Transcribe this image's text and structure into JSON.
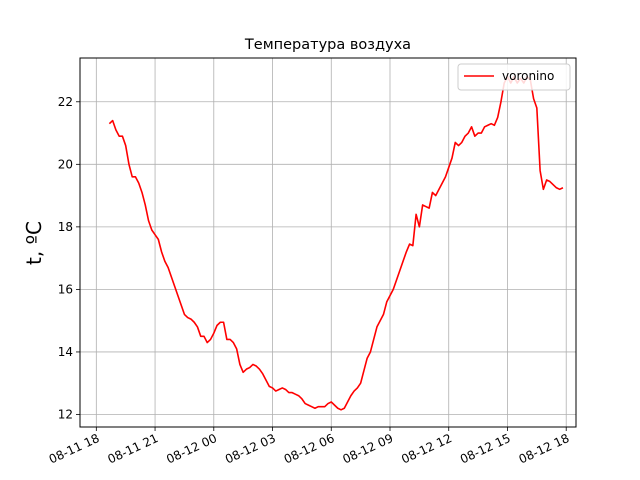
{
  "chart_data": {
    "type": "line",
    "title": "Температура воздуха",
    "ylabel": "t, ºC",
    "xlabel": "",
    "grid": true,
    "legend_position": "top-right",
    "xlim": [
      "08-11 17:10",
      "08-12 18:30"
    ],
    "ylim": [
      11.6,
      23.4
    ],
    "x_ticks": [
      "08-11 18",
      "08-11 21",
      "08-12 00",
      "08-12 03",
      "08-12 06",
      "08-12 09",
      "08-12 12",
      "08-12 15",
      "08-12 18"
    ],
    "y_ticks": [
      12,
      14,
      16,
      18,
      20,
      22
    ],
    "series": [
      {
        "name": "voronino",
        "color": "#ff0000",
        "x": [
          "08-11 18:40",
          "08-11 18:50",
          "08-11 19:00",
          "08-11 19:10",
          "08-11 19:20",
          "08-11 19:30",
          "08-11 19:40",
          "08-11 19:50",
          "08-11 20:00",
          "08-11 20:10",
          "08-11 20:20",
          "08-11 20:30",
          "08-11 20:40",
          "08-11 20:50",
          "08-11 21:00",
          "08-11 21:10",
          "08-11 21:20",
          "08-11 21:30",
          "08-11 21:40",
          "08-11 21:50",
          "08-11 22:00",
          "08-11 22:10",
          "08-11 22:20",
          "08-11 22:30",
          "08-11 22:40",
          "08-11 22:50",
          "08-11 23:00",
          "08-11 23:10",
          "08-11 23:20",
          "08-11 23:30",
          "08-11 23:40",
          "08-11 23:50",
          "08-12 00:00",
          "08-12 00:10",
          "08-12 00:20",
          "08-12 00:30",
          "08-12 00:40",
          "08-12 00:50",
          "08-12 01:00",
          "08-12 01:10",
          "08-12 01:20",
          "08-12 01:30",
          "08-12 01:40",
          "08-12 01:50",
          "08-12 02:00",
          "08-12 02:10",
          "08-12 02:20",
          "08-12 02:30",
          "08-12 02:40",
          "08-12 02:50",
          "08-12 03:00",
          "08-12 03:10",
          "08-12 03:20",
          "08-12 03:30",
          "08-12 03:40",
          "08-12 03:50",
          "08-12 04:00",
          "08-12 04:10",
          "08-12 04:20",
          "08-12 04:30",
          "08-12 04:40",
          "08-12 04:50",
          "08-12 05:00",
          "08-12 05:10",
          "08-12 05:20",
          "08-12 05:30",
          "08-12 05:40",
          "08-12 05:50",
          "08-12 06:00",
          "08-12 06:10",
          "08-12 06:20",
          "08-12 06:30",
          "08-12 06:40",
          "08-12 06:50",
          "08-12 07:00",
          "08-12 07:10",
          "08-12 07:20",
          "08-12 07:30",
          "08-12 07:40",
          "08-12 07:50",
          "08-12 08:00",
          "08-12 08:10",
          "08-12 08:20",
          "08-12 08:30",
          "08-12 08:40",
          "08-12 08:50",
          "08-12 09:00",
          "08-12 09:10",
          "08-12 09:20",
          "08-12 09:30",
          "08-12 09:40",
          "08-12 09:50",
          "08-12 10:00",
          "08-12 10:10",
          "08-12 10:20",
          "08-12 10:30",
          "08-12 10:40",
          "08-12 10:50",
          "08-12 11:00",
          "08-12 11:10",
          "08-12 11:20",
          "08-12 11:30",
          "08-12 11:40",
          "08-12 11:50",
          "08-12 12:00",
          "08-12 12:10",
          "08-12 12:20",
          "08-12 12:30",
          "08-12 12:40",
          "08-12 12:50",
          "08-12 13:00",
          "08-12 13:10",
          "08-12 13:20",
          "08-12 13:30",
          "08-12 13:40",
          "08-12 13:50",
          "08-12 14:00",
          "08-12 14:10",
          "08-12 14:20",
          "08-12 14:30",
          "08-12 14:40",
          "08-12 14:50",
          "08-12 15:00",
          "08-12 15:10",
          "08-12 15:20",
          "08-12 15:30",
          "08-12 15:40",
          "08-12 15:50",
          "08-12 16:00",
          "08-12 16:10",
          "08-12 16:20",
          "08-12 16:30",
          "08-12 16:40",
          "08-12 16:50",
          "08-12 17:00",
          "08-12 17:10",
          "08-12 17:20",
          "08-12 17:30",
          "08-12 17:40",
          "08-12 17:50"
        ],
        "values": [
          21.3,
          21.4,
          21.1,
          20.9,
          20.9,
          20.6,
          20.0,
          19.6,
          19.6,
          19.4,
          19.1,
          18.7,
          18.2,
          17.9,
          17.75,
          17.6,
          17.2,
          16.9,
          16.7,
          16.4,
          16.1,
          15.8,
          15.5,
          15.2,
          15.1,
          15.05,
          14.95,
          14.8,
          14.5,
          14.5,
          14.3,
          14.4,
          14.6,
          14.85,
          14.95,
          14.95,
          14.4,
          14.4,
          14.3,
          14.1,
          13.6,
          13.35,
          13.45,
          13.5,
          13.6,
          13.55,
          13.45,
          13.3,
          13.1,
          12.9,
          12.85,
          12.75,
          12.8,
          12.85,
          12.8,
          12.7,
          12.7,
          12.65,
          12.6,
          12.5,
          12.35,
          12.3,
          12.25,
          12.2,
          12.25,
          12.25,
          12.25,
          12.35,
          12.4,
          12.3,
          12.2,
          12.15,
          12.2,
          12.4,
          12.6,
          12.75,
          12.85,
          13.0,
          13.4,
          13.8,
          14.0,
          14.4,
          14.8,
          15.0,
          15.2,
          15.6,
          15.8,
          16.0,
          16.3,
          16.6,
          16.9,
          17.2,
          17.45,
          17.4,
          18.4,
          18.0,
          18.7,
          18.65,
          18.6,
          19.1,
          19.0,
          19.2,
          19.4,
          19.6,
          19.9,
          20.2,
          20.7,
          20.6,
          20.7,
          20.9,
          21.0,
          21.2,
          20.9,
          21.0,
          21.0,
          21.2,
          21.25,
          21.3,
          21.25,
          21.5,
          22.0,
          22.6,
          22.8,
          22.6,
          22.8,
          22.6,
          22.75,
          22.6,
          22.8,
          22.7,
          22.1,
          21.8,
          19.8,
          19.2,
          19.5,
          19.45,
          19.35,
          19.25,
          19.2,
          19.25
        ]
      }
    ]
  }
}
